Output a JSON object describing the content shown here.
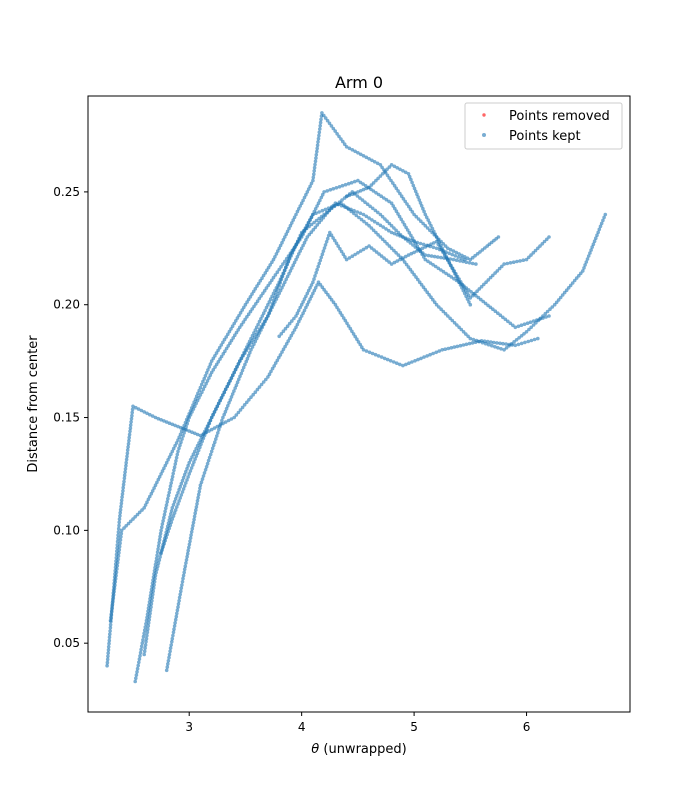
{
  "chart_data": {
    "type": "scatter",
    "title": "Arm 0",
    "xlabel_symbol": "θ",
    "xlabel_rest": " (unwrapped)",
    "ylabel": "Distance from center",
    "xlim": [
      2.1,
      6.92
    ],
    "ylim": [
      0.0195,
      0.2925
    ],
    "xticks": [
      3,
      4,
      5,
      6
    ],
    "yticks": [
      0.05,
      0.1,
      0.15,
      0.2,
      0.25
    ],
    "ytick_labels": [
      "0.05",
      "0.10",
      "0.15",
      "0.20",
      "0.25"
    ],
    "legend_position": "upper right",
    "legend": [
      {
        "label": "Points removed",
        "color": "#ff0000"
      },
      {
        "label": "Points kept",
        "color": "#1f77b4"
      }
    ],
    "series": [
      {
        "name": "Points removed",
        "color": "#ff0000",
        "curves": []
      },
      {
        "name": "Points kept",
        "color": "#1f77b4",
        "curves": [
          {
            "x": [
              2.27,
              2.33,
              2.38,
              2.44,
              2.5,
              2.7,
              2.9,
              3.1,
              3.4,
              3.7,
              3.95,
              4.15,
              4.3,
              4.55,
              4.9,
              5.25,
              5.6,
              5.9,
              6.1
            ],
            "y": [
              0.04,
              0.075,
              0.105,
              0.13,
              0.155,
              0.15,
              0.146,
              0.142,
              0.15,
              0.168,
              0.19,
              0.21,
              0.2,
              0.18,
              0.173,
              0.18,
              0.184,
              0.182,
              0.185
            ]
          },
          {
            "x": [
              2.3,
              2.4,
              2.6,
              2.9,
              3.2,
              3.5,
              3.75,
              3.95,
              4.1,
              4.18,
              4.4,
              4.7,
              5.0,
              5.3,
              5.5,
              5.65,
              5.75
            ],
            "y": [
              0.06,
              0.1,
              0.11,
              0.14,
              0.175,
              0.2,
              0.22,
              0.24,
              0.255,
              0.285,
              0.27,
              0.262,
              0.24,
              0.225,
              0.22,
              0.226,
              0.23
            ]
          },
          {
            "x": [
              2.52,
              2.62,
              2.75,
              2.9,
              3.0,
              3.2,
              3.45,
              3.75,
              4.0,
              4.2,
              4.5,
              4.8,
              5.1,
              5.4,
              5.7,
              5.9,
              6.2
            ],
            "y": [
              0.033,
              0.06,
              0.1,
              0.135,
              0.15,
              0.17,
              0.19,
              0.212,
              0.23,
              0.25,
              0.255,
              0.245,
              0.22,
              0.21,
              0.198,
              0.19,
              0.195
            ]
          },
          {
            "x": [
              2.6,
              2.7,
              2.85,
              3.0,
              3.2,
              3.45,
              3.7,
              3.9,
              4.1,
              4.35,
              4.6,
              4.9,
              5.2,
              5.5,
              5.8,
              6.0,
              6.25,
              6.5,
              6.7
            ],
            "y": [
              0.045,
              0.08,
              0.11,
              0.13,
              0.15,
              0.175,
              0.195,
              0.222,
              0.24,
              0.245,
              0.235,
              0.22,
              0.2,
              0.185,
              0.18,
              0.188,
              0.2,
              0.215,
              0.24
            ]
          },
          {
            "x": [
              2.75,
              2.85,
              3.0,
              3.2,
              3.4,
              3.6,
              3.8,
              4.0,
              4.2,
              4.45,
              4.7,
              4.9,
              5.1,
              5.35,
              5.55
            ],
            "y": [
              0.09,
              0.105,
              0.125,
              0.15,
              0.17,
              0.19,
              0.21,
              0.232,
              0.24,
              0.25,
              0.24,
              0.23,
              0.222,
              0.22,
              0.218
            ]
          },
          {
            "x": [
              2.8,
              2.95,
              3.1,
              3.3,
              3.55,
              3.8,
              4.05,
              4.3,
              4.55,
              4.8,
              5.0,
              5.2,
              5.45
            ],
            "y": [
              0.038,
              0.08,
              0.12,
              0.15,
              0.18,
              0.205,
              0.23,
              0.245,
              0.24,
              0.232,
              0.228,
              0.225,
              0.22
            ]
          },
          {
            "x": [
              3.8,
              3.95,
              4.1,
              4.25,
              4.4,
              4.6,
              4.8,
              4.95,
              5.2,
              5.5,
              5.8,
              6.0,
              6.2
            ],
            "y": [
              0.186,
              0.195,
              0.21,
              0.232,
              0.22,
              0.226,
              0.218,
              0.222,
              0.228,
              0.203,
              0.218,
              0.22,
              0.23
            ]
          },
          {
            "x": [
              4.4,
              4.6,
              4.8,
              4.95,
              5.1,
              5.25,
              5.4,
              5.5
            ],
            "y": [
              0.248,
              0.252,
              0.262,
              0.258,
              0.24,
              0.225,
              0.21,
              0.2
            ]
          }
        ]
      }
    ]
  }
}
